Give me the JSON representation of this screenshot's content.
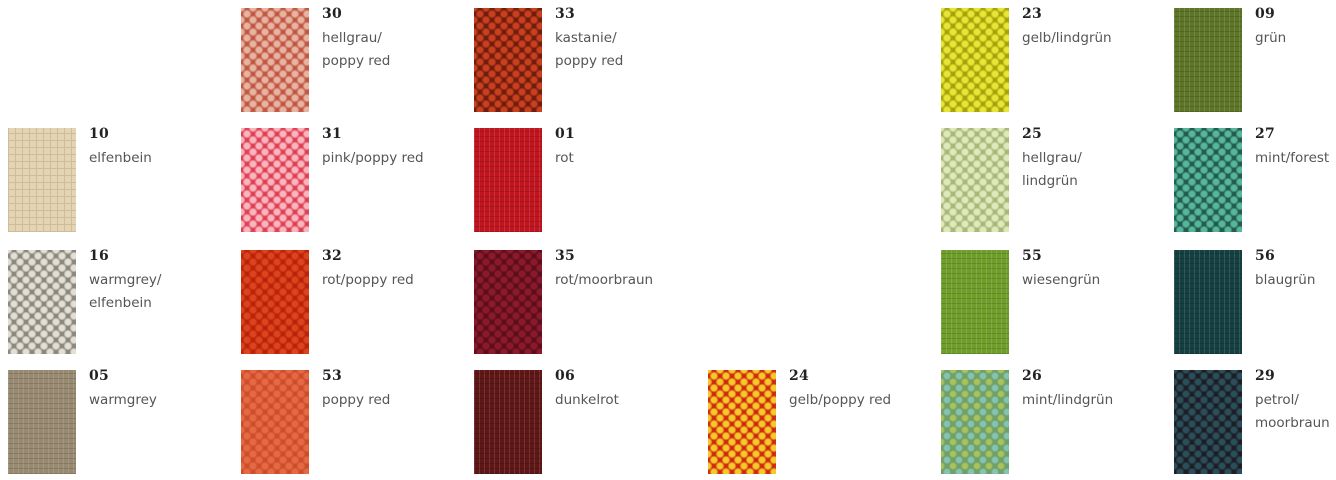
{
  "swatches": [
    {
      "code": "30",
      "name": "hellgrau/\npoppy red",
      "colors": {
        "bg": "#c25540",
        "fg": "#e6b4a2"
      },
      "texture": "weave-dot"
    },
    {
      "code": "33",
      "name": "kastanie/\npoppy red",
      "colors": {
        "bg": "#6e1b0e",
        "fg": "#c9401f"
      },
      "texture": "weave-dot"
    },
    {
      "code": "23",
      "name": "gelb/lindgrün",
      "colors": {
        "bg": "#a5a10a",
        "fg": "#e7e535"
      },
      "texture": "weave-dot"
    },
    {
      "code": "09",
      "name": "grün",
      "colors": {
        "bg": "#5e7528",
        "fg": "#718d34"
      },
      "texture": "weave-plain"
    },
    {
      "code": "10",
      "name": "elfenbein",
      "colors": {
        "bg": "#e4d4b4",
        "fg": "#cdbd9b"
      },
      "texture": "weave-grid"
    },
    {
      "code": "31",
      "name": "pink/poppy red",
      "colors": {
        "bg": "#de3f52",
        "fg": "#fab6c0"
      },
      "texture": "weave-dot"
    },
    {
      "code": "01",
      "name": "rot",
      "colors": {
        "bg": "#c0141f",
        "fg": "#a10f18"
      },
      "texture": "weave-plain"
    },
    {
      "code": "25",
      "name": "hellgrau/\nlindgrün",
      "colors": {
        "bg": "#a5b776",
        "fg": "#e0e8bc"
      },
      "texture": "weave-dot"
    },
    {
      "code": "27",
      "name": "mint/forest",
      "colors": {
        "bg": "#205a4c",
        "fg": "#58b69b"
      },
      "texture": "weave-dot"
    },
    {
      "code": "16",
      "name": "warmgrey/\nelfenbein",
      "colors": {
        "bg": "#8a8578",
        "fg": "#e2e0d6"
      },
      "texture": "weave-dot"
    },
    {
      "code": "32",
      "name": "rot/poppy red",
      "colors": {
        "bg": "#bd2008",
        "fg": "#d8451e"
      },
      "texture": "weave-dot"
    },
    {
      "code": "35",
      "name": "rot/moorbraun",
      "colors": {
        "bg": "#5a0e1b",
        "fg": "#8c1a2c"
      },
      "texture": "weave-dot"
    },
    {
      "code": "55",
      "name": "wiesengrün",
      "colors": {
        "bg": "#6f9d2a",
        "fg": "#86b53a"
      },
      "texture": "weave-plain"
    },
    {
      "code": "56",
      "name": "blaugrün",
      "colors": {
        "bg": "#153f40",
        "fg": "#1f5556"
      },
      "texture": "weave-plain"
    },
    {
      "code": "05",
      "name": "warmgrey",
      "colors": {
        "bg": "#988a71",
        "fg": "#b0a386"
      },
      "texture": "weave-plain"
    },
    {
      "code": "53",
      "name": "poppy red",
      "colors": {
        "bg": "#cd4b2a",
        "fg": "#e46a44"
      },
      "texture": "weave-dot"
    },
    {
      "code": "06",
      "name": "dunkelrot",
      "colors": {
        "bg": "#5e1616",
        "fg": "#741c1c"
      },
      "texture": "weave-plain"
    },
    {
      "code": "24",
      "name": "gelb/poppy red",
      "colors": {
        "bg": "#d22512",
        "fg": "#f2cb28"
      },
      "texture": "weave-dot"
    },
    {
      "code": "26",
      "name": "mint/lindgrün",
      "colors": {
        "bg": "#6ea06a",
        "fg": "#86c3b2",
        "fg2": "#a9c25c"
      },
      "texture": "weave-mix"
    },
    {
      "code": "29",
      "name": "petrol/\nmoorbraun",
      "colors": {
        "bg": "#1c1c22",
        "fg": "#2a4e5a"
      },
      "texture": "weave-dot"
    }
  ]
}
